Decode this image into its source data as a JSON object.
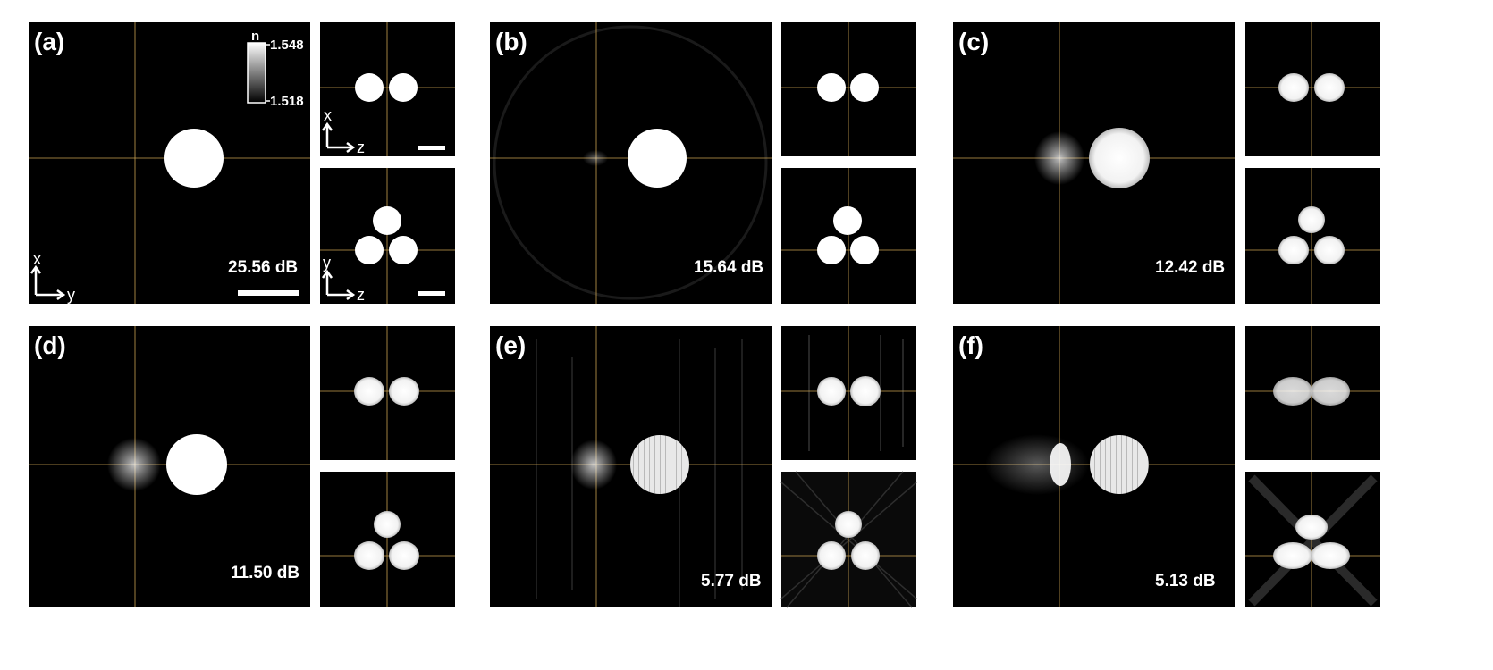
{
  "panels": [
    {
      "label": "(a)",
      "db": "25.56 dB"
    },
    {
      "label": "(b)",
      "db": "15.64 dB"
    },
    {
      "label": "(c)",
      "db": "12.42 dB"
    },
    {
      "label": "(d)",
      "db": "11.50 dB"
    },
    {
      "label": "(e)",
      "db": "5.77 dB"
    },
    {
      "label": "(f)",
      "db": "5.13 dB"
    }
  ],
  "colorbar": {
    "title": "n",
    "max": "1.548",
    "min": "1.518"
  },
  "axes": {
    "x": "x",
    "y": "y",
    "z": "z"
  },
  "colors": {
    "background": "#ffffff",
    "image": "#000000",
    "crosshair": "#c8a050",
    "object": "#ffffff"
  }
}
